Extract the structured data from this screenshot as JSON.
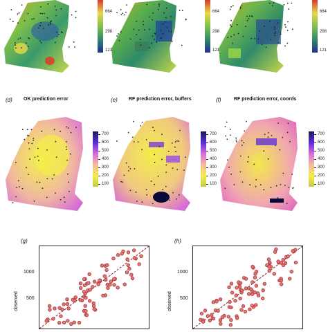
{
  "top_row": {
    "colorbar_ticks": [
      "664",
      "298",
      "121"
    ]
  },
  "middle_row": {
    "panels": [
      {
        "label": "(d)",
        "title": "OK prediction error"
      },
      {
        "label": "(e)",
        "title": "RF prediction error, buffers"
      },
      {
        "label": "(f)",
        "title": "RF prediction error, coords"
      }
    ],
    "colorbar_ticks": [
      "700",
      "600",
      "500",
      "400",
      "300",
      "200",
      "100"
    ]
  },
  "bottom_row": {
    "panels": [
      {
        "label": "(g)",
        "ylabel": "observed",
        "yticks": [
          "1000",
          "500"
        ]
      },
      {
        "label": "(h)",
        "ylabel": "observed",
        "yticks": [
          "1000",
          "500"
        ]
      }
    ]
  },
  "colors": {
    "point": "#b03030",
    "point_fill": "#d9797a",
    "dashed": "#8a1a1a"
  }
}
